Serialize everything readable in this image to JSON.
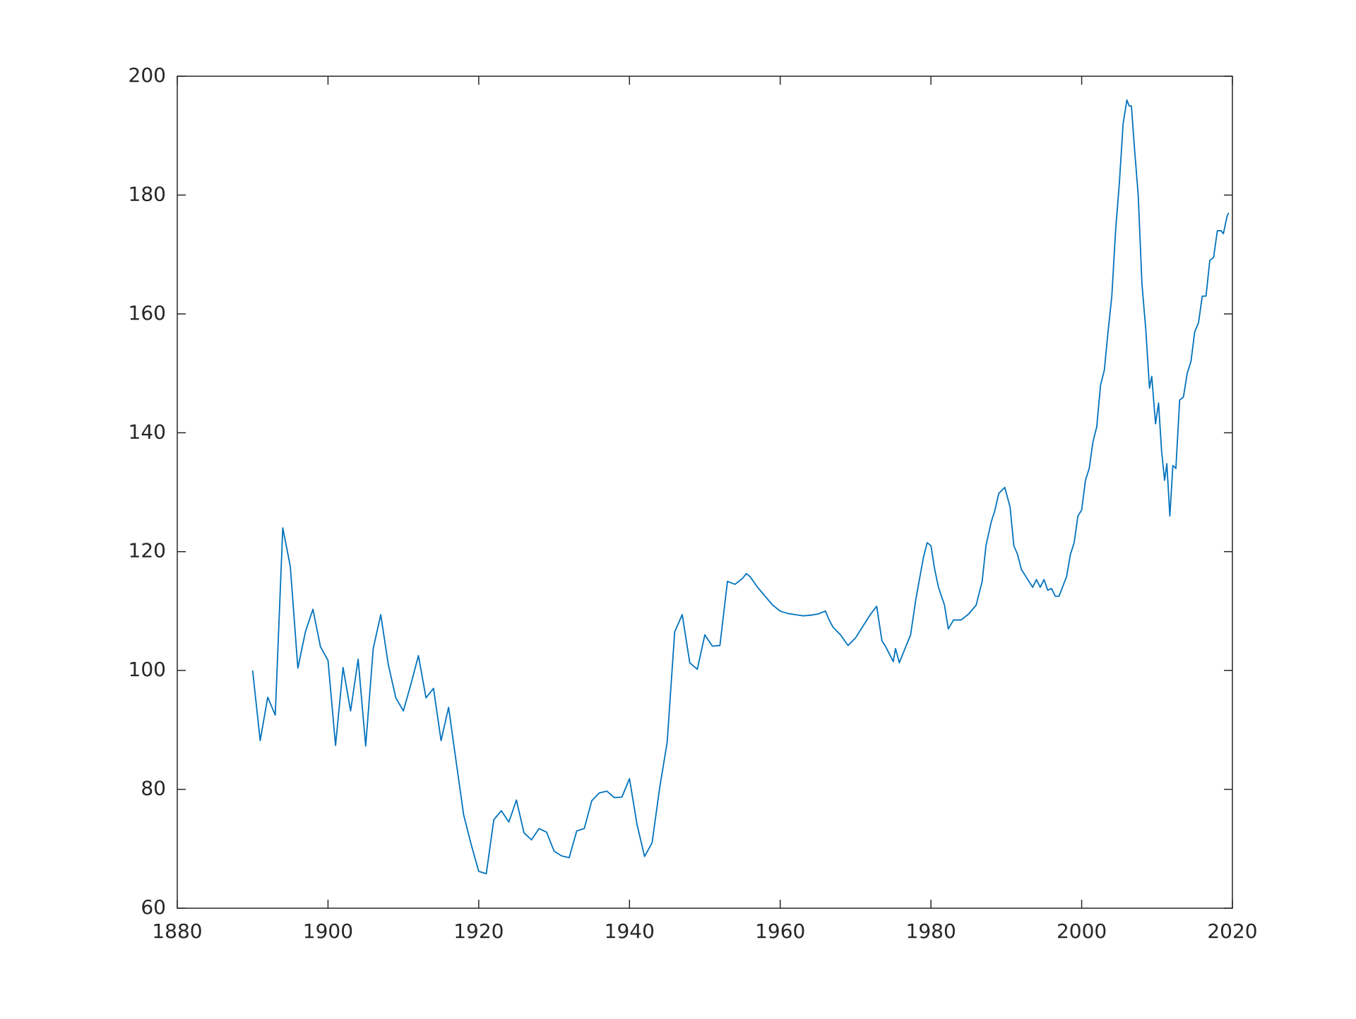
{
  "chart_data": {
    "type": "line",
    "x": [
      1890,
      1891,
      1892,
      1893,
      1894,
      1895,
      1896,
      1897,
      1898,
      1899,
      1900,
      1901,
      1902,
      1903,
      1904,
      1905,
      1906,
      1907,
      1908,
      1909,
      1910,
      1911,
      1912,
      1913,
      1914,
      1915,
      1916,
      1917,
      1918,
      1919,
      1920,
      1921,
      1922,
      1923,
      1924,
      1925,
      1926,
      1927,
      1928,
      1929,
      1930,
      1931,
      1932,
      1933,
      1934,
      1935,
      1936,
      1937,
      1938,
      1939,
      1940,
      1941,
      1942,
      1943,
      1944,
      1945,
      1946,
      1947,
      1948,
      1949,
      1950,
      1951,
      1952,
      1953,
      1954,
      1955,
      1955.5,
      1956,
      1957,
      1958,
      1959,
      1960,
      1961,
      1962,
      1963,
      1964,
      1965,
      1966,
      1966.5,
      1967,
      1968,
      1969,
      1970,
      1971,
      1972,
      1972.8,
      1973.5,
      1974,
      1975,
      1975.3,
      1975.8,
      1976.5,
      1977.3,
      1978,
      1979,
      1979.5,
      1980,
      1980.5,
      1981,
      1981.8,
      1982.3,
      1983,
      1984,
      1985,
      1986,
      1986.8,
      1987.3,
      1988,
      1988.5,
      1989,
      1989.8,
      1990.5,
      1991,
      1991.5,
      1992,
      1993,
      1993.5,
      1994,
      1994.5,
      1995,
      1995.5,
      1996,
      1996.5,
      1997,
      1997.6,
      1998,
      1998.5,
      1999,
      1999.5,
      2000,
      2000.5,
      2001,
      2001.5,
      2002,
      2002.5,
      2003,
      2003.5,
      2004,
      2004.5,
      2005,
      2005.5,
      2006,
      2006.3,
      2006.6,
      2007,
      2007.5,
      2008,
      2008.5,
      2009,
      2009.3,
      2009.8,
      2010.2,
      2010.6,
      2011,
      2011.3,
      2011.7,
      2012.1,
      2012.5,
      2013,
      2013.5,
      2014,
      2014.5,
      2015,
      2015.5,
      2016,
      2016.5,
      2017,
      2017.5,
      2018,
      2018.5,
      2018.8,
      2019.3,
      2019.5
    ],
    "series": [
      {
        "color": "#0072bd",
        "values": [
          100,
          88.2,
          95.5,
          92.5,
          124,
          117.5,
          100.4,
          106.5,
          110.3,
          104,
          101.7,
          87.4,
          100.5,
          93.2,
          101.9,
          87.3,
          103.7,
          109.4,
          101,
          95.4,
          93.2,
          97.7,
          102.5,
          95.4,
          97,
          88.2,
          93.8,
          84.7,
          75.7,
          70.7,
          66.2,
          65.8,
          74.9,
          76.4,
          74.5,
          78.2,
          72.7,
          71.5,
          73.4,
          72.8,
          69.6,
          68.8,
          68.5,
          73,
          73.4,
          78.1,
          79.4,
          79.7,
          78.6,
          78.7,
          81.8,
          74.1,
          68.7,
          71,
          80.2,
          87.9,
          106.5,
          109.4,
          101.3,
          100.2,
          106,
          104.1,
          104.2,
          115,
          114.5,
          115.5,
          116.3,
          115.8,
          114,
          112.5,
          111,
          110,
          109.6,
          109.4,
          109.2,
          109.3,
          109.5,
          110,
          108.5,
          107.3,
          106,
          104.2,
          105.5,
          107.5,
          109.5,
          110.8,
          105,
          104,
          101.5,
          103.7,
          101.3,
          103.5,
          106,
          112,
          119,
          121.5,
          121,
          117,
          114,
          111,
          107,
          108.5,
          108.5,
          109.5,
          111,
          115,
          121,
          125,
          127,
          129.8,
          130.8,
          127.5,
          121,
          119.5,
          117,
          115,
          114,
          115.3,
          114,
          115.3,
          113.5,
          113.8,
          112.5,
          112.5,
          114.5,
          115.8,
          119.5,
          121.5,
          126,
          127,
          132,
          134,
          138.5,
          141,
          148,
          150.5,
          157,
          163,
          174,
          182,
          192,
          196,
          195,
          195,
          188,
          180,
          165,
          157.5,
          147.5,
          149.5,
          141.5,
          145,
          137,
          132,
          134.8,
          126,
          134.5,
          134,
          145.5,
          146,
          150,
          152,
          157,
          158.5,
          163,
          163,
          169,
          169.5,
          174,
          174,
          173.5,
          176.5,
          177
        ]
      }
    ],
    "xlim": [
      1880,
      2020
    ],
    "xticks": [
      1880,
      1900,
      1920,
      1940,
      1960,
      1980,
      2000,
      2020
    ],
    "ylim": [
      60,
      200
    ],
    "yticks": [
      60,
      80,
      100,
      120,
      140,
      160,
      180,
      200
    ]
  }
}
